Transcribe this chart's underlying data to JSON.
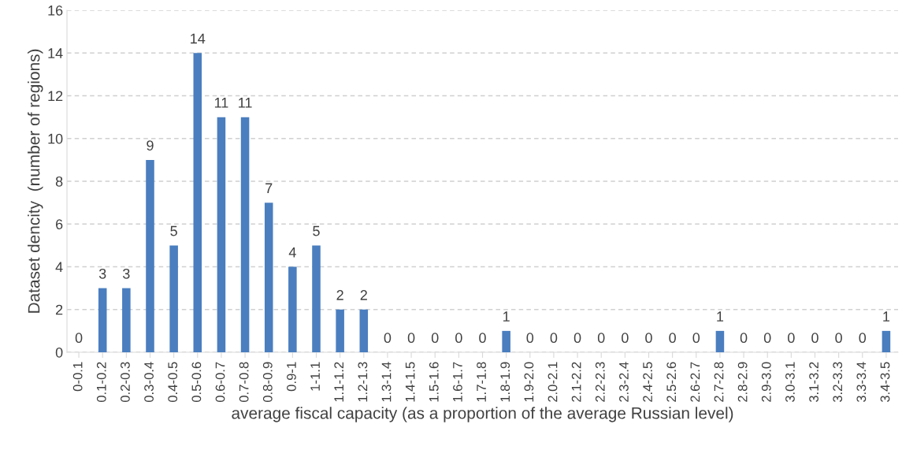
{
  "chart_data": {
    "type": "bar",
    "xlabel": "average fiscal capacity (as a proportion of the average Russian level)",
    "ylabel": "Dataset dencity  (number of regions)",
    "categories": [
      "0-0.1",
      "0.1-0.2",
      "0.2-0.3",
      "0.3-0.4",
      "0.4-0.5",
      "0.5-0.6",
      "0.6-0.7",
      "0.7-0.8",
      "0.8-0.9",
      "0.9-1",
      "1-1.1",
      "1.1-1.2",
      "1.2-1.3",
      "1.3-1.4",
      "1.4-1.5",
      "1.5-1.6",
      "1.6-1.7",
      "1.7-1.8",
      "1.8-1.9",
      "1.9-2.0",
      "2.0-2.1",
      "2.1-2.2",
      "2.2-2.3",
      "2.3-2.4",
      "2.4-2.5",
      "2.5-2.6",
      "2.6-2.7",
      "2.7-2.8",
      "2.8-2.9",
      "2.9-3.0",
      "3.0-3.1",
      "3.1-3.2",
      "3.2-3.3",
      "3.3-3.4",
      "3.4-3.5"
    ],
    "values": [
      0,
      3,
      3,
      9,
      5,
      14,
      11,
      11,
      7,
      4,
      5,
      2,
      2,
      0,
      0,
      0,
      0,
      0,
      1,
      0,
      0,
      0,
      0,
      0,
      0,
      0,
      0,
      1,
      0,
      0,
      0,
      0,
      0,
      0,
      1
    ],
    "color": "#4a7ebf",
    "ylim": [
      0,
      16
    ],
    "yticks": [
      0,
      2,
      4,
      6,
      8,
      10,
      12,
      14,
      16
    ],
    "grid": "y",
    "data_labels": true
  }
}
